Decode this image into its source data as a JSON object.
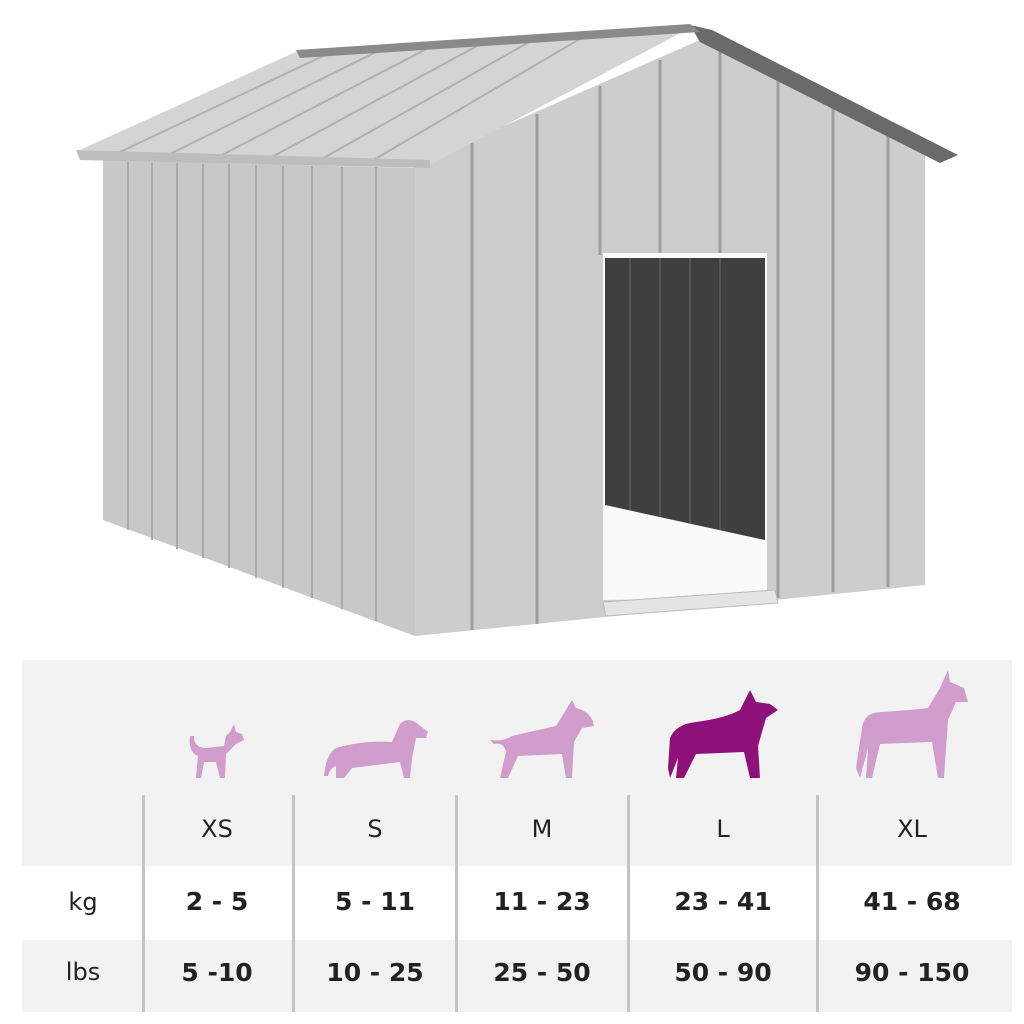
{
  "size_chart": {
    "sizes": [
      "XS",
      "S",
      "M",
      "L",
      "XL"
    ],
    "highlighted_size": "L",
    "rows": [
      {
        "label": "kg",
        "values": [
          "2 - 5",
          "5 - 11",
          "11 - 23",
          "23 - 41",
          "41 - 68"
        ]
      },
      {
        "label": "lbs",
        "values": [
          "5 -10",
          "10 - 25",
          "25 - 50",
          "50 - 90",
          "90 - 150"
        ]
      }
    ]
  },
  "colors": {
    "dog_default": "#d19dcc",
    "dog_highlight": "#8e1079",
    "shed": "#c9c9c9"
  }
}
